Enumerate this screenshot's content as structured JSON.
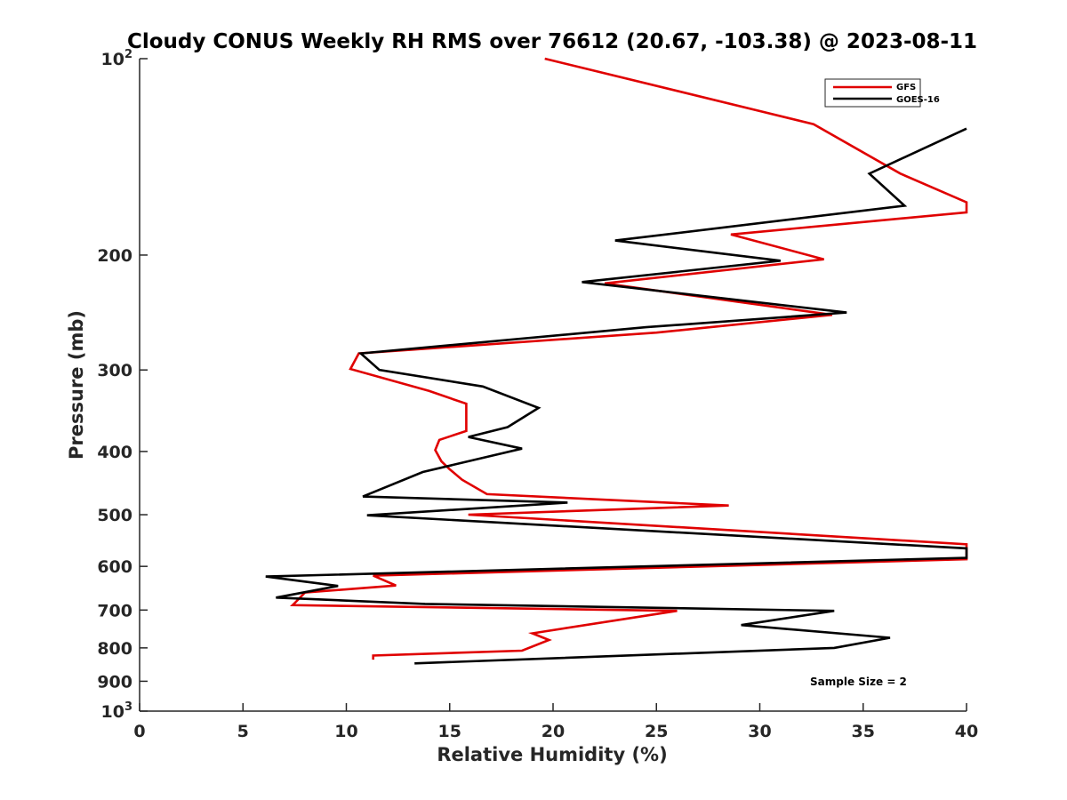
{
  "chart_data": {
    "type": "line",
    "title": "Cloudy CONUS Weekly RH RMS over 76612 (20.67, -103.38) @ 2023-08-11",
    "xlabel": "Relative Humidity (%)",
    "ylabel": "Pressure (mb)",
    "xlim": [
      0,
      40
    ],
    "ylim": [
      100,
      1000
    ],
    "yscale": "log",
    "y_reversed": true,
    "grid": false,
    "legend_position": "top-right",
    "x_ticks": [
      0,
      5,
      10,
      15,
      20,
      25,
      30,
      35,
      40
    ],
    "x_tick_labels": [
      "0",
      "5",
      "10",
      "15",
      "20",
      "25",
      "30",
      "35",
      "40"
    ],
    "y_ticks": [
      {
        "value": 100,
        "base": "10",
        "exp": "2"
      },
      {
        "value": 200,
        "label": "200"
      },
      {
        "value": 300,
        "label": "300"
      },
      {
        "value": 400,
        "label": "400"
      },
      {
        "value": 500,
        "label": "500"
      },
      {
        "value": 600,
        "label": "600"
      },
      {
        "value": 700,
        "label": "700"
      },
      {
        "value": 800,
        "label": "800"
      },
      {
        "value": 900,
        "label": "900"
      },
      {
        "value": 1000,
        "base": "10",
        "exp": "3"
      }
    ],
    "annotation": "Sample Size = 2",
    "series": [
      {
        "name": "GFS",
        "color": "#e00000",
        "points": [
          [
            19.6,
            100
          ],
          [
            32.6,
            126
          ],
          [
            36.8,
            150
          ],
          [
            40.0,
            166
          ],
          [
            40.0,
            172
          ],
          [
            28.6,
            186
          ],
          [
            33.1,
            203
          ],
          [
            22.5,
            221
          ],
          [
            33.5,
            247
          ],
          [
            25.0,
            263
          ],
          [
            10.6,
            283
          ],
          [
            10.2,
            299
          ],
          [
            14.0,
            323
          ],
          [
            15.8,
            338
          ],
          [
            15.8,
            372
          ],
          [
            14.5,
            384
          ],
          [
            14.3,
            398
          ],
          [
            14.6,
            414
          ],
          [
            15.0,
            426
          ],
          [
            15.6,
            442
          ],
          [
            16.8,
            465
          ],
          [
            28.5,
            484
          ],
          [
            15.9,
            500
          ],
          [
            40.0,
            555
          ],
          [
            40.0,
            585
          ],
          [
            11.3,
            620
          ],
          [
            12.4,
            642
          ],
          [
            8.0,
            658
          ],
          [
            7.5,
            683
          ],
          [
            7.4,
            688
          ],
          [
            26.0,
            702
          ],
          [
            19.0,
            760
          ],
          [
            19.8,
            778
          ],
          [
            18.5,
            808
          ],
          [
            11.3,
            822
          ],
          [
            11.3,
            834
          ]
        ]
      },
      {
        "name": "GOES-16",
        "color": "#000000",
        "points": [
          [
            40.0,
            128
          ],
          [
            35.3,
            150
          ],
          [
            37.0,
            168
          ],
          [
            23.0,
            190
          ],
          [
            31.0,
            204
          ],
          [
            21.4,
            220
          ],
          [
            34.2,
            245
          ],
          [
            24.5,
            258
          ],
          [
            10.7,
            283
          ],
          [
            11.6,
            300
          ],
          [
            16.6,
            318
          ],
          [
            19.3,
            343
          ],
          [
            17.8,
            367
          ],
          [
            15.9,
            380
          ],
          [
            18.5,
            396
          ],
          [
            13.7,
            430
          ],
          [
            10.8,
            469
          ],
          [
            20.7,
            479
          ],
          [
            11.0,
            501
          ],
          [
            40.0,
            563
          ],
          [
            40.0,
            582
          ],
          [
            6.1,
            622
          ],
          [
            9.6,
            643
          ],
          [
            6.6,
            670
          ],
          [
            13.8,
            685
          ],
          [
            33.6,
            702
          ],
          [
            29.1,
            738
          ],
          [
            36.3,
            772
          ],
          [
            33.6,
            800
          ],
          [
            13.3,
            845
          ]
        ]
      }
    ]
  }
}
